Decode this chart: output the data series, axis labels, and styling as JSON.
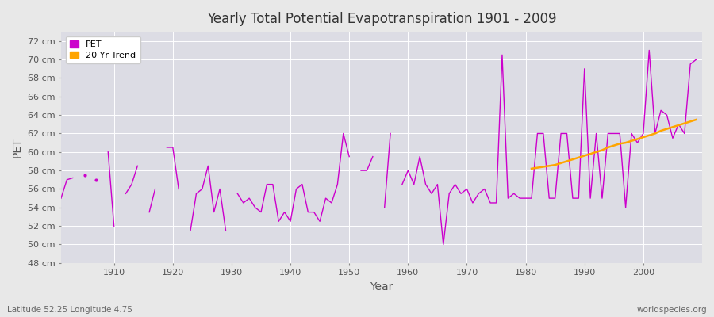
{
  "title": "Yearly Total Potential Evapotranspiration 1901 - 2009",
  "xlabel": "Year",
  "ylabel": "PET",
  "subtitle_left": "Latitude 52.25 Longitude 4.75",
  "subtitle_right": "worldspecies.org",
  "ylim": [
    48,
    73
  ],
  "ytick_labels": [
    "48 cm",
    "50 cm",
    "52 cm",
    "54 cm",
    "56 cm",
    "58 cm",
    "60 cm",
    "62 cm",
    "64 cm",
    "66 cm",
    "68 cm",
    "70 cm",
    "72 cm"
  ],
  "ytick_values": [
    48,
    50,
    52,
    54,
    56,
    58,
    60,
    62,
    64,
    66,
    68,
    70,
    72
  ],
  "pet_color": "#cc00cc",
  "trend_color": "#ffa500",
  "fig_bg_color": "#e8e8e8",
  "plot_bg_color": "#dcdce4",
  "grid_color": "#ffffff",
  "pet_data": [
    [
      1901,
      55.0
    ],
    [
      1902,
      57.0
    ],
    [
      1903,
      57.2
    ],
    [
      1905,
      57.5
    ],
    [
      1907,
      57.0
    ],
    [
      1909,
      60.0
    ],
    [
      1910,
      52.0
    ],
    [
      1912,
      55.5
    ],
    [
      1913,
      56.5
    ],
    [
      1914,
      58.5
    ],
    [
      1916,
      53.5
    ],
    [
      1917,
      56.0
    ],
    [
      1919,
      60.5
    ],
    [
      1920,
      60.5
    ],
    [
      1921,
      56.0
    ],
    [
      1923,
      51.5
    ],
    [
      1924,
      55.5
    ],
    [
      1925,
      56.0
    ],
    [
      1926,
      58.5
    ],
    [
      1927,
      53.5
    ],
    [
      1928,
      56.0
    ],
    [
      1929,
      51.5
    ],
    [
      1931,
      55.5
    ],
    [
      1932,
      54.5
    ],
    [
      1933,
      55.0
    ],
    [
      1934,
      54.0
    ],
    [
      1935,
      53.5
    ],
    [
      1936,
      56.5
    ],
    [
      1937,
      56.5
    ],
    [
      1938,
      52.5
    ],
    [
      1939,
      53.5
    ],
    [
      1940,
      52.5
    ],
    [
      1941,
      56.0
    ],
    [
      1942,
      56.5
    ],
    [
      1943,
      53.5
    ],
    [
      1944,
      53.5
    ],
    [
      1945,
      52.5
    ],
    [
      1946,
      55.0
    ],
    [
      1947,
      54.5
    ],
    [
      1948,
      56.5
    ],
    [
      1949,
      62.0
    ],
    [
      1950,
      59.5
    ],
    [
      1952,
      58.0
    ],
    [
      1953,
      58.0
    ],
    [
      1954,
      59.5
    ],
    [
      1956,
      54.0
    ],
    [
      1957,
      62.0
    ],
    [
      1959,
      56.5
    ],
    [
      1960,
      58.0
    ],
    [
      1961,
      56.5
    ],
    [
      1962,
      59.5
    ],
    [
      1963,
      56.5
    ],
    [
      1964,
      55.5
    ],
    [
      1965,
      56.5
    ],
    [
      1966,
      50.0
    ],
    [
      1967,
      55.5
    ],
    [
      1968,
      56.5
    ],
    [
      1969,
      55.5
    ],
    [
      1970,
      56.0
    ],
    [
      1971,
      54.5
    ],
    [
      1972,
      55.5
    ],
    [
      1973,
      56.0
    ],
    [
      1974,
      54.5
    ],
    [
      1975,
      54.5
    ],
    [
      1976,
      70.5
    ],
    [
      1977,
      55.0
    ],
    [
      1978,
      55.5
    ],
    [
      1979,
      55.0
    ],
    [
      1980,
      55.0
    ],
    [
      1981,
      55.0
    ],
    [
      1982,
      62.0
    ],
    [
      1983,
      62.0
    ],
    [
      1984,
      55.0
    ],
    [
      1985,
      55.0
    ],
    [
      1986,
      62.0
    ],
    [
      1987,
      62.0
    ],
    [
      1988,
      55.0
    ],
    [
      1989,
      55.0
    ],
    [
      1990,
      69.0
    ],
    [
      1991,
      55.0
    ],
    [
      1992,
      62.0
    ],
    [
      1993,
      55.0
    ],
    [
      1994,
      62.0
    ],
    [
      1995,
      62.0
    ],
    [
      1996,
      62.0
    ],
    [
      1997,
      54.0
    ],
    [
      1998,
      62.0
    ],
    [
      1999,
      61.0
    ],
    [
      2000,
      62.0
    ],
    [
      2001,
      71.0
    ],
    [
      2002,
      62.0
    ],
    [
      2003,
      64.5
    ],
    [
      2004,
      64.0
    ],
    [
      2005,
      61.5
    ],
    [
      2006,
      63.0
    ],
    [
      2007,
      62.0
    ],
    [
      2008,
      69.5
    ],
    [
      2009,
      70.0
    ]
  ],
  "trend_data": [
    [
      1981,
      58.2
    ],
    [
      1982,
      58.3
    ],
    [
      1983,
      58.4
    ],
    [
      1984,
      58.5
    ],
    [
      1985,
      58.6
    ],
    [
      1986,
      58.8
    ],
    [
      1987,
      59.0
    ],
    [
      1988,
      59.2
    ],
    [
      1989,
      59.4
    ],
    [
      1990,
      59.6
    ],
    [
      1991,
      59.8
    ],
    [
      1992,
      60.0
    ],
    [
      1993,
      60.2
    ],
    [
      1994,
      60.5
    ],
    [
      1995,
      60.7
    ],
    [
      1996,
      60.9
    ],
    [
      1997,
      61.0
    ],
    [
      1998,
      61.2
    ],
    [
      1999,
      61.4
    ],
    [
      2000,
      61.6
    ],
    [
      2001,
      61.8
    ],
    [
      2002,
      62.0
    ],
    [
      2003,
      62.3
    ],
    [
      2004,
      62.5
    ],
    [
      2005,
      62.7
    ],
    [
      2006,
      62.9
    ],
    [
      2007,
      63.1
    ],
    [
      2008,
      63.3
    ],
    [
      2009,
      63.5
    ]
  ],
  "xtick_positions": [
    1910,
    1920,
    1930,
    1940,
    1950,
    1960,
    1970,
    1980,
    1990,
    2000
  ],
  "xlim": [
    1901,
    2010
  ]
}
